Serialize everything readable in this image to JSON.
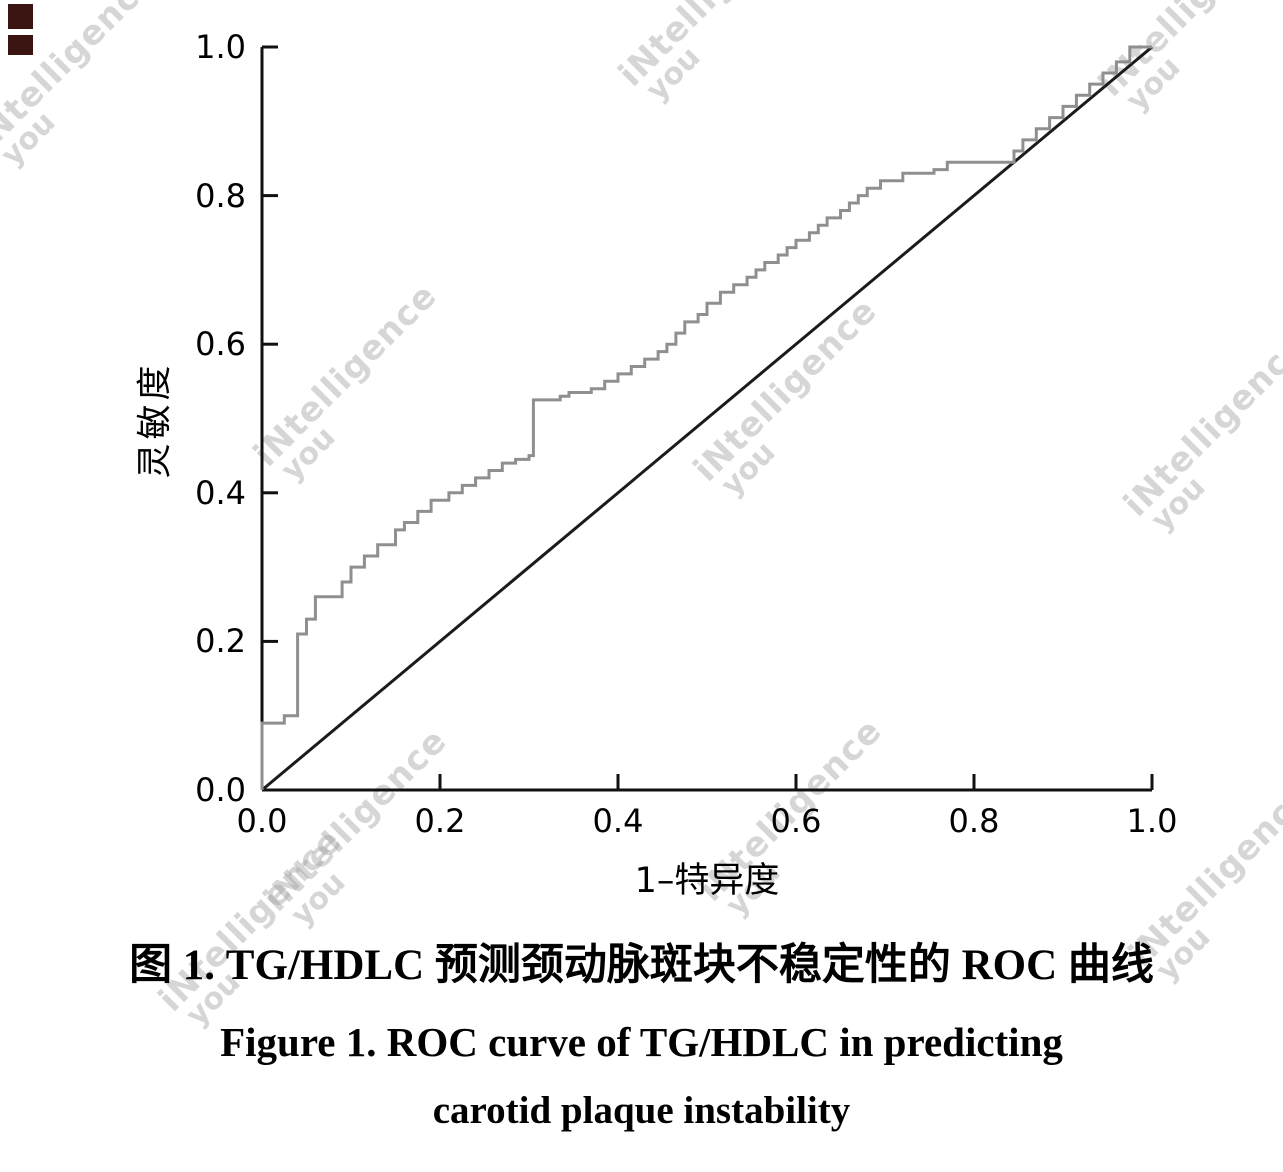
{
  "chart_data": {
    "type": "line",
    "title": "",
    "xlabel": "1–特异度",
    "ylabel": "灵敏度",
    "xlim": [
      0,
      1
    ],
    "ylim": [
      0,
      1
    ],
    "grid": false,
    "legend": "none",
    "x_tick_labels": [
      "0.0",
      "0.2",
      "0.4",
      "0.6",
      "0.8",
      "1.0"
    ],
    "y_tick_labels": [
      "0.0",
      "0.2",
      "0.4",
      "0.6",
      "0.8",
      "1.0"
    ],
    "series": [
      {
        "name": "ROC curve of TG/HDLC",
        "slug": "roc-curve",
        "type": "step",
        "color": "#8f8f8f",
        "points": [
          [
            0,
            0
          ],
          [
            0,
            0.075
          ],
          [
            0.025,
            0.09
          ],
          [
            0.04,
            0.1
          ],
          [
            0.05,
            0.21
          ],
          [
            0.06,
            0.23
          ],
          [
            0.09,
            0.26
          ],
          [
            0.1,
            0.28
          ],
          [
            0.115,
            0.3
          ],
          [
            0.13,
            0.315
          ],
          [
            0.15,
            0.33
          ],
          [
            0.16,
            0.35
          ],
          [
            0.175,
            0.36
          ],
          [
            0.19,
            0.375
          ],
          [
            0.21,
            0.39
          ],
          [
            0.225,
            0.4
          ],
          [
            0.24,
            0.41
          ],
          [
            0.255,
            0.42
          ],
          [
            0.27,
            0.43
          ],
          [
            0.285,
            0.44
          ],
          [
            0.3,
            0.445
          ],
          [
            0.305,
            0.45
          ],
          [
            0.335,
            0.525
          ],
          [
            0.345,
            0.53
          ],
          [
            0.37,
            0.535
          ],
          [
            0.385,
            0.54
          ],
          [
            0.4,
            0.55
          ],
          [
            0.415,
            0.56
          ],
          [
            0.43,
            0.57
          ],
          [
            0.445,
            0.58
          ],
          [
            0.455,
            0.59
          ],
          [
            0.465,
            0.6
          ],
          [
            0.475,
            0.615
          ],
          [
            0.49,
            0.63
          ],
          [
            0.5,
            0.64
          ],
          [
            0.515,
            0.655
          ],
          [
            0.53,
            0.67
          ],
          [
            0.545,
            0.68
          ],
          [
            0.555,
            0.69
          ],
          [
            0.565,
            0.7
          ],
          [
            0.58,
            0.71
          ],
          [
            0.59,
            0.72
          ],
          [
            0.6,
            0.73
          ],
          [
            0.615,
            0.74
          ],
          [
            0.625,
            0.75
          ],
          [
            0.635,
            0.76
          ],
          [
            0.65,
            0.77
          ],
          [
            0.66,
            0.78
          ],
          [
            0.67,
            0.79
          ],
          [
            0.68,
            0.8
          ],
          [
            0.695,
            0.81
          ],
          [
            0.72,
            0.82
          ],
          [
            0.755,
            0.83
          ],
          [
            0.77,
            0.835
          ],
          [
            0.845,
            0.845
          ],
          [
            0.855,
            0.86
          ],
          [
            0.87,
            0.875
          ],
          [
            0.885,
            0.89
          ],
          [
            0.9,
            0.905
          ],
          [
            0.915,
            0.92
          ],
          [
            0.93,
            0.935
          ],
          [
            0.945,
            0.95
          ],
          [
            0.96,
            0.965
          ],
          [
            0.975,
            0.98
          ],
          [
            1.0,
            1.0
          ]
        ]
      },
      {
        "name": "Reference diagonal",
        "slug": "reference-line",
        "type": "line",
        "color": "#1b1b1b",
        "points": [
          [
            0,
            0
          ],
          [
            1,
            1
          ]
        ]
      }
    ]
  },
  "caption": {
    "line1": "图 1.  TG/HDLC 预测颈动脉斑块不稳定性的 ROC 曲线",
    "line2": "Figure 1.  ROC curve of TG/HDLC in predicting",
    "line3": "carotid plaque instability"
  },
  "watermark": {
    "line1": "iNtelligence",
    "line2": "you"
  }
}
